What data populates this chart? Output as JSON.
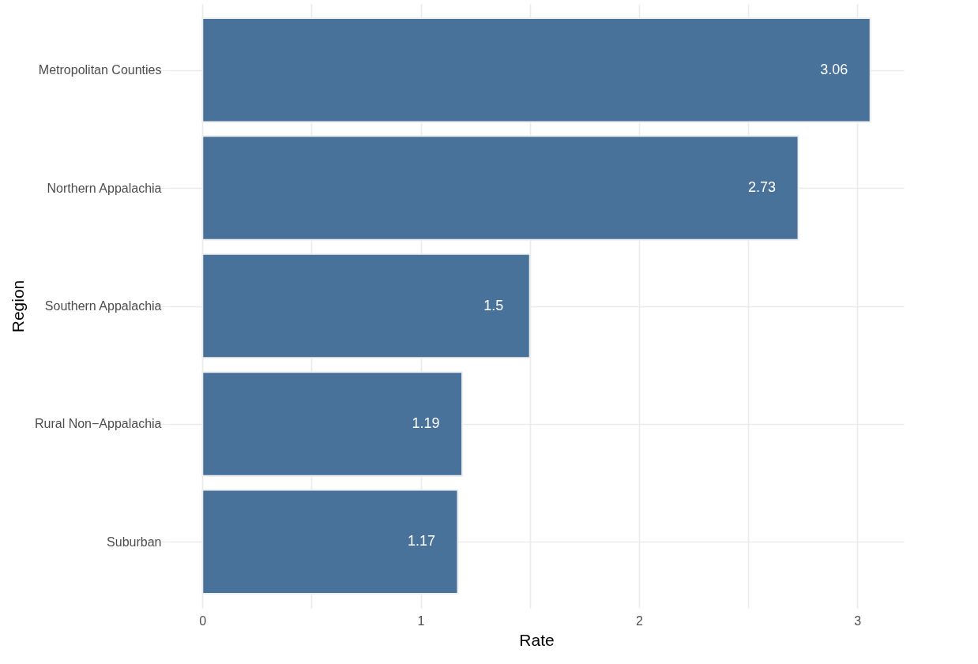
{
  "chart_data": {
    "type": "bar",
    "orientation": "horizontal",
    "xlabel": "Rate",
    "ylabel": "Region",
    "categories": [
      "Metropolitan Counties",
      "Northern Appalachia",
      "Southern Appalachia",
      "Rural Non−Appalachia",
      "Suburban"
    ],
    "values": [
      3.06,
      2.73,
      1.5,
      1.19,
      1.17
    ],
    "color": "#46709a",
    "xlim": [
      -0.153,
      3.213
    ],
    "xticks": [
      0,
      {
        "value": 0.5,
        "label": null
      },
      1,
      {
        "value": 1.5,
        "label": null
      },
      2,
      {
        "value": 2.5,
        "label": null
      },
      3
    ],
    "grid": true,
    "data_labels": true
  }
}
